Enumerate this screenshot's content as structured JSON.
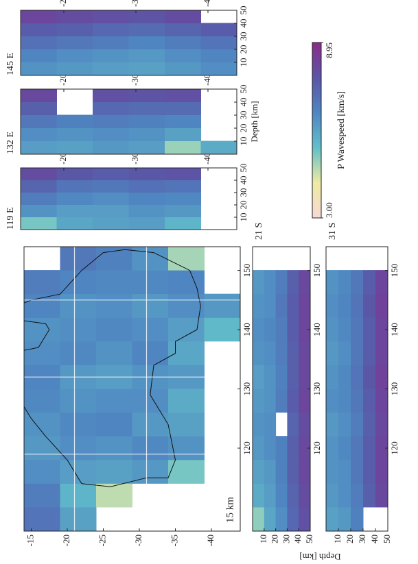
{
  "chart_data": [
    {
      "type": "heatmap",
      "annotation": "15 km",
      "xlim": [
        106,
        154
      ],
      "ylim": [
        -14,
        -44
      ],
      "xticks": [
        120,
        130,
        140,
        150
      ],
      "yticks": [
        -15,
        -20,
        -25,
        -30,
        -35,
        -40
      ],
      "x": [
        108,
        112,
        116,
        120,
        124,
        128,
        132,
        136,
        140,
        144,
        148,
        152
      ],
      "y": [
        -16.5,
        -21.5,
        -26.5,
        -31.5,
        -36.5,
        -41.5
      ],
      "values": [
        [
          7.0,
          6.8,
          6.4,
          6.2,
          6.3,
          6.5,
          6.6,
          6.4,
          6.3,
          6.6,
          6.8,
          null
        ],
        [
          6.0,
          5.6,
          6.1,
          6.4,
          6.5,
          6.3,
          6.2,
          6.5,
          6.4,
          6.3,
          6.6,
          6.9
        ],
        [
          null,
          4.6,
          6.0,
          6.3,
          6.6,
          6.4,
          6.1,
          6.3,
          6.5,
          6.4,
          6.5,
          6.7
        ],
        [
          null,
          null,
          6.2,
          6.5,
          6.2,
          6.4,
          6.3,
          6.6,
          6.4,
          6.2,
          6.5,
          6.3
        ],
        [
          null,
          null,
          5.2,
          6.3,
          6.0,
          5.8,
          6.2,
          5.9,
          6.1,
          6.4,
          6.6,
          4.8
        ],
        [
          null,
          null,
          null,
          null,
          null,
          null,
          null,
          null,
          5.5,
          6.2,
          null,
          null
        ]
      ]
    },
    {
      "type": "heatmap",
      "title": "119 E",
      "lon": 119,
      "xlim": [
        0,
        50
      ],
      "ylim": [
        -14,
        -44
      ],
      "xticks": [
        10,
        20,
        30,
        40,
        50
      ],
      "yticks": [
        -20,
        -30,
        -40
      ],
      "x": [
        5,
        15,
        25,
        35,
        45
      ],
      "y": [
        -16.5,
        -21.5,
        -26.5,
        -31.5,
        -36.5,
        -41.5
      ],
      "values": [
        [
          5.2,
          6.3,
          6.8,
          7.4,
          8.0
        ],
        [
          5.9,
          6.1,
          6.5,
          7.0,
          7.7
        ],
        [
          6.0,
          6.1,
          6.4,
          6.9,
          7.6
        ],
        [
          6.1,
          6.3,
          6.6,
          7.1,
          7.7
        ],
        [
          5.6,
          6.2,
          6.5,
          7.0,
          7.8
        ],
        [
          null,
          null,
          null,
          null,
          null
        ]
      ]
    },
    {
      "type": "heatmap",
      "title": "132 E",
      "lon": 132,
      "xlabel": "Depth [km]",
      "xlim": [
        0,
        50
      ],
      "ylim": [
        -14,
        -44
      ],
      "xticks": [
        10,
        20,
        30,
        40,
        50
      ],
      "yticks": [
        -20,
        -30,
        -40
      ],
      "x": [
        5,
        15,
        25,
        35,
        45
      ],
      "y": [
        -16.5,
        -21.5,
        -26.5,
        -31.5,
        -36.5,
        -41.5
      ],
      "values": [
        [
          6.1,
          6.4,
          6.9,
          7.5,
          8.1
        ],
        [
          6.0,
          6.3,
          6.7,
          null,
          null
        ],
        [
          6.2,
          6.4,
          6.8,
          7.3,
          7.9
        ],
        [
          6.1,
          6.3,
          6.7,
          7.2,
          7.8
        ],
        [
          4.9,
          6.0,
          6.6,
          7.2,
          7.9
        ],
        [
          5.8,
          null,
          null,
          null,
          null
        ]
      ]
    },
    {
      "type": "heatmap",
      "title": "145 E",
      "lon": 145,
      "xlim": [
        0,
        50
      ],
      "ylim": [
        -14,
        -44
      ],
      "xticks": [
        10,
        20,
        30,
        40,
        50
      ],
      "yticks": [
        -20,
        -30,
        -40
      ],
      "x": [
        5,
        15,
        25,
        35,
        45
      ],
      "y": [
        -16.5,
        -21.5,
        -26.5,
        -31.5,
        -36.5,
        -41.5
      ],
      "values": [
        [
          6.3,
          6.6,
          7.1,
          7.6,
          8.2
        ],
        [
          6.2,
          6.4,
          6.9,
          7.5,
          8.0
        ],
        [
          6.1,
          6.3,
          6.8,
          7.3,
          7.9
        ],
        [
          6.0,
          6.2,
          6.6,
          7.2,
          7.8
        ],
        [
          6.2,
          6.4,
          6.8,
          7.4,
          8.0
        ],
        [
          6.4,
          6.6,
          7.0,
          7.6,
          null
        ]
      ]
    },
    {
      "type": "heatmap",
      "title": "21 S",
      "lat": -21,
      "xlim": [
        106,
        154
      ],
      "ylim": [
        0,
        50
      ],
      "xticks": [
        120,
        130,
        140,
        150
      ],
      "yticks": [
        10,
        20,
        30,
        40,
        50
      ],
      "x": [
        108,
        112,
        116,
        120,
        124,
        128,
        132,
        136,
        140,
        144,
        148,
        152
      ],
      "y": [
        5,
        15,
        25,
        35,
        45
      ],
      "values": [
        [
          5.0,
          5.8,
          6.0,
          6.2,
          6.3,
          6.2,
          6.1,
          6.3,
          6.4,
          6.3,
          6.2,
          null
        ],
        [
          5.9,
          6.1,
          6.2,
          6.4,
          6.4,
          6.3,
          6.3,
          6.4,
          6.5,
          6.4,
          6.4,
          null
        ],
        [
          6.4,
          6.6,
          6.7,
          6.7,
          null,
          6.8,
          6.7,
          6.8,
          6.8,
          6.9,
          6.8,
          null
        ],
        [
          7.3,
          7.4,
          7.5,
          7.5,
          7.4,
          7.6,
          7.5,
          7.5,
          7.6,
          7.6,
          7.5,
          null
        ],
        [
          7.9,
          8.0,
          8.1,
          8.1,
          8.0,
          8.2,
          8.1,
          8.1,
          8.2,
          8.2,
          8.1,
          null
        ]
      ]
    },
    {
      "type": "heatmap",
      "title": "31 S",
      "lat": -31,
      "ylabel": "Depth [km]",
      "xlim": [
        106,
        154
      ],
      "ylim": [
        0,
        50
      ],
      "xticks": [
        120,
        130,
        140,
        150
      ],
      "yticks": [
        10,
        20,
        30,
        40,
        50
      ],
      "x": [
        108,
        112,
        116,
        120,
        124,
        128,
        132,
        136,
        140,
        144,
        148,
        152
      ],
      "y": [
        5,
        15,
        25,
        35,
        45
      ],
      "values": [
        [
          6.0,
          6.2,
          6.3,
          6.3,
          6.2,
          6.4,
          6.3,
          6.2,
          6.3,
          6.4,
          6.3,
          null
        ],
        [
          6.2,
          6.4,
          6.4,
          6.5,
          6.4,
          6.5,
          6.5,
          6.4,
          6.5,
          6.6,
          6.5,
          null
        ],
        [
          6.7,
          6.8,
          6.9,
          6.9,
          6.8,
          6.9,
          7.0,
          6.9,
          6.9,
          7.0,
          6.9,
          null
        ],
        [
          null,
          7.5,
          7.6,
          7.6,
          7.5,
          7.6,
          7.7,
          7.6,
          7.6,
          7.7,
          7.6,
          null
        ],
        [
          null,
          8.1,
          8.2,
          8.2,
          8.1,
          8.2,
          8.3,
          8.2,
          8.2,
          8.3,
          8.2,
          null
        ]
      ]
    },
    {
      "type": "colorbar",
      "title": "P Wavespeed [km/s]",
      "xlim": [
        3.0,
        8.95
      ],
      "xticks": [
        {
          "value": 3.0,
          "label": "3.00"
        },
        {
          "value": 8.95,
          "label": "8.95"
        }
      ],
      "colorscale": [
        "#f8d8d6",
        "#eeeba2",
        "#62bfc9",
        "#4f86c2",
        "#5b55a6",
        "#8a2c8a"
      ]
    }
  ]
}
